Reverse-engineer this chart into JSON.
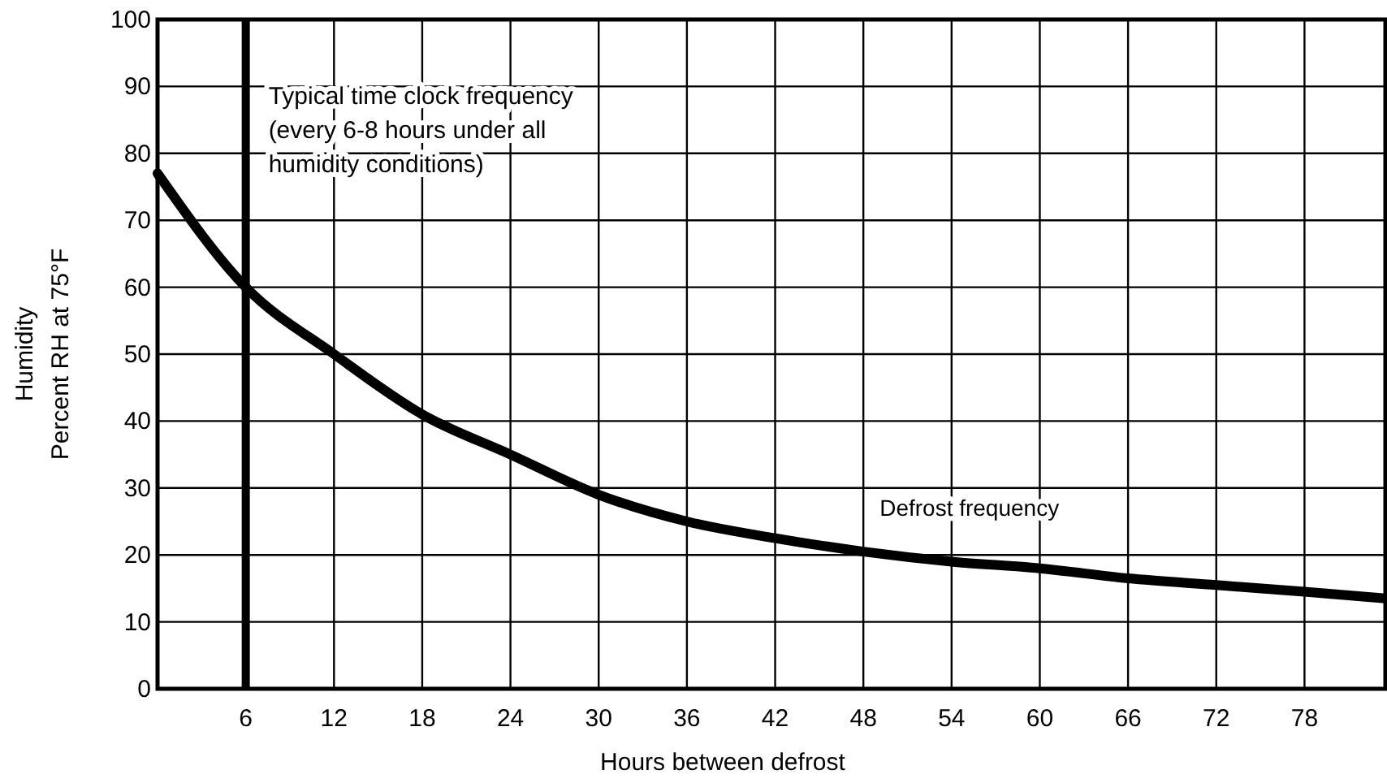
{
  "chart_data": {
    "type": "line",
    "xlabel": "Hours between defrost",
    "ylabel": "Humidity\nPercent RH at 75°F",
    "xlim": [
      0,
      83.5
    ],
    "xticks": [
      6,
      12,
      18,
      24,
      30,
      36,
      42,
      48,
      54,
      60,
      66,
      72,
      78
    ],
    "ylim": [
      0,
      100
    ],
    "yticks": [
      0,
      10,
      20,
      30,
      40,
      50,
      60,
      70,
      80,
      90,
      100
    ],
    "grid": true,
    "legend": false,
    "series": [
      {
        "name": "Defrost frequency",
        "color": "#000000",
        "x": [
          0,
          6,
          12,
          18,
          24,
          30,
          36,
          42,
          48,
          54,
          60,
          66,
          72,
          78,
          83.5
        ],
        "values": [
          77,
          60,
          50,
          41,
          35,
          29,
          25,
          22.5,
          20.5,
          19,
          18,
          16.5,
          15.5,
          14.5,
          13.5
        ]
      }
    ],
    "ref_lines": [
      {
        "axis": "x",
        "value": 6,
        "label": "Typical time clock frequency\n(every 6-8 hours under all\nhumidity conditions)",
        "color": "#000000"
      }
    ]
  }
}
